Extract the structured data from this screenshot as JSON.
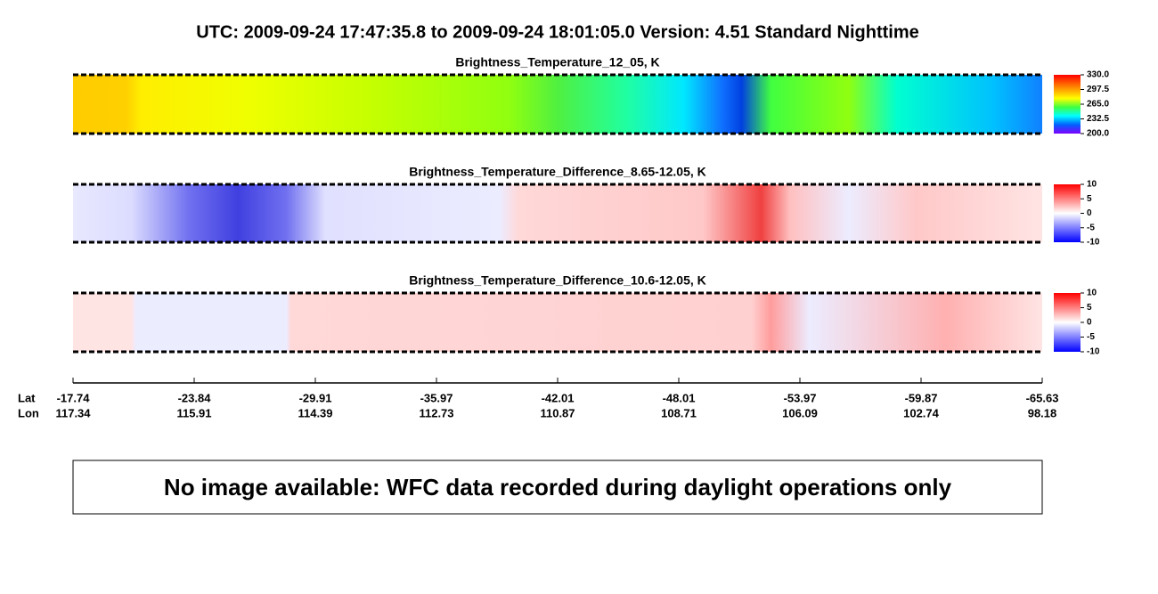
{
  "header": {
    "title": "UTC:  2009-09-24   17:47:35.8  to  2009-09-24   18:01:05.0    Version: 4.51  Standard Nighttime"
  },
  "panels": [
    {
      "title": "Brightness_Temperature_12_05, K",
      "colorbar_ticks": [
        "330.0",
        "297.5",
        "265.0",
        "232.5",
        "200.0"
      ]
    },
    {
      "title": "Brightness_Temperature_Difference_8.65-12.05, K",
      "colorbar_ticks": [
        "10",
        "5",
        "0",
        "-5",
        "-10"
      ]
    },
    {
      "title": "Brightness_Temperature_Difference_10.6-12.05, K",
      "colorbar_ticks": [
        "10",
        "5",
        "0",
        "-5",
        "-10"
      ]
    }
  ],
  "axis": {
    "lat_label": "Lat",
    "lon_label": "Lon",
    "lat": [
      "-17.74",
      "-23.84",
      "-29.91",
      "-35.97",
      "-42.01",
      "-48.01",
      "-53.97",
      "-59.87",
      "-65.63"
    ],
    "lon": [
      "117.34",
      "115.91",
      "114.39",
      "112.73",
      "110.87",
      "108.71",
      "106.09",
      "102.74",
      "98.18"
    ]
  },
  "message": "No image available: WFC data recorded during daylight operations only"
}
